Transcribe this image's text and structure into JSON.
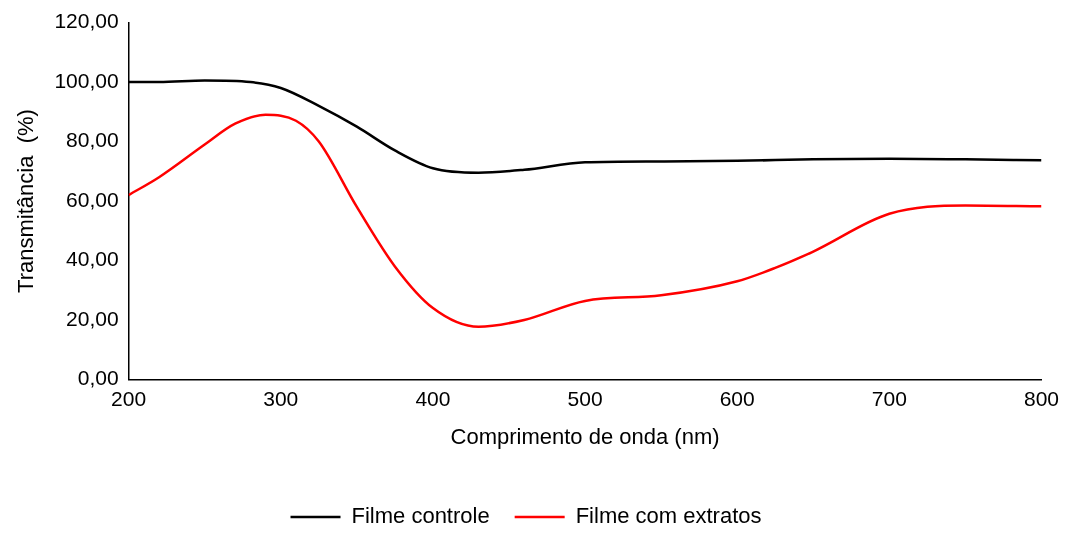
{
  "chart_data": {
    "type": "line",
    "xlabel": "Comprimento de onda (nm)",
    "ylabel": "Transmitância  (%)",
    "xlim": [
      200,
      800
    ],
    "xticks": [
      200,
      300,
      400,
      500,
      600,
      700,
      800
    ],
    "ylim": [
      0,
      120
    ],
    "yticks": [
      {
        "value": 0,
        "label": "0,00"
      },
      {
        "value": 20,
        "label": "20,00"
      },
      {
        "value": 40,
        "label": "40,00"
      },
      {
        "value": 60,
        "label": "60,00"
      },
      {
        "value": 80,
        "label": "80,00"
      },
      {
        "value": 100,
        "label": "100,00"
      },
      {
        "value": 120,
        "label": "120,00"
      }
    ],
    "grid": false,
    "legend": "bottom",
    "marker": "none",
    "line_style": "solid",
    "series": [
      {
        "name": "Filme controle",
        "color": "#000000",
        "x": [
          200,
          220,
          250,
          280,
          300,
          325,
          350,
          375,
          400,
          430,
          460,
          500,
          550,
          600,
          650,
          700,
          750,
          800
        ],
        "values": [
          100,
          100,
          100.5,
          100,
          98,
          92,
          85,
          77,
          71,
          69.5,
          70.5,
          73,
          73.3,
          73.5,
          74,
          74.2,
          74,
          73.7
        ]
      },
      {
        "name": "Filme com extratos",
        "color": "#ff0000",
        "x": [
          200,
          220,
          250,
          270,
          290,
          310,
          325,
          350,
          375,
          400,
          430,
          460,
          500,
          550,
          600,
          625,
          650,
          700,
          750,
          800
        ],
        "values": [
          62,
          68,
          79,
          86,
          89,
          87,
          80,
          58,
          38,
          24,
          17.7,
          20,
          26.4,
          28.3,
          33,
          37.5,
          43,
          55.7,
          58.5,
          58.2
        ]
      }
    ]
  }
}
